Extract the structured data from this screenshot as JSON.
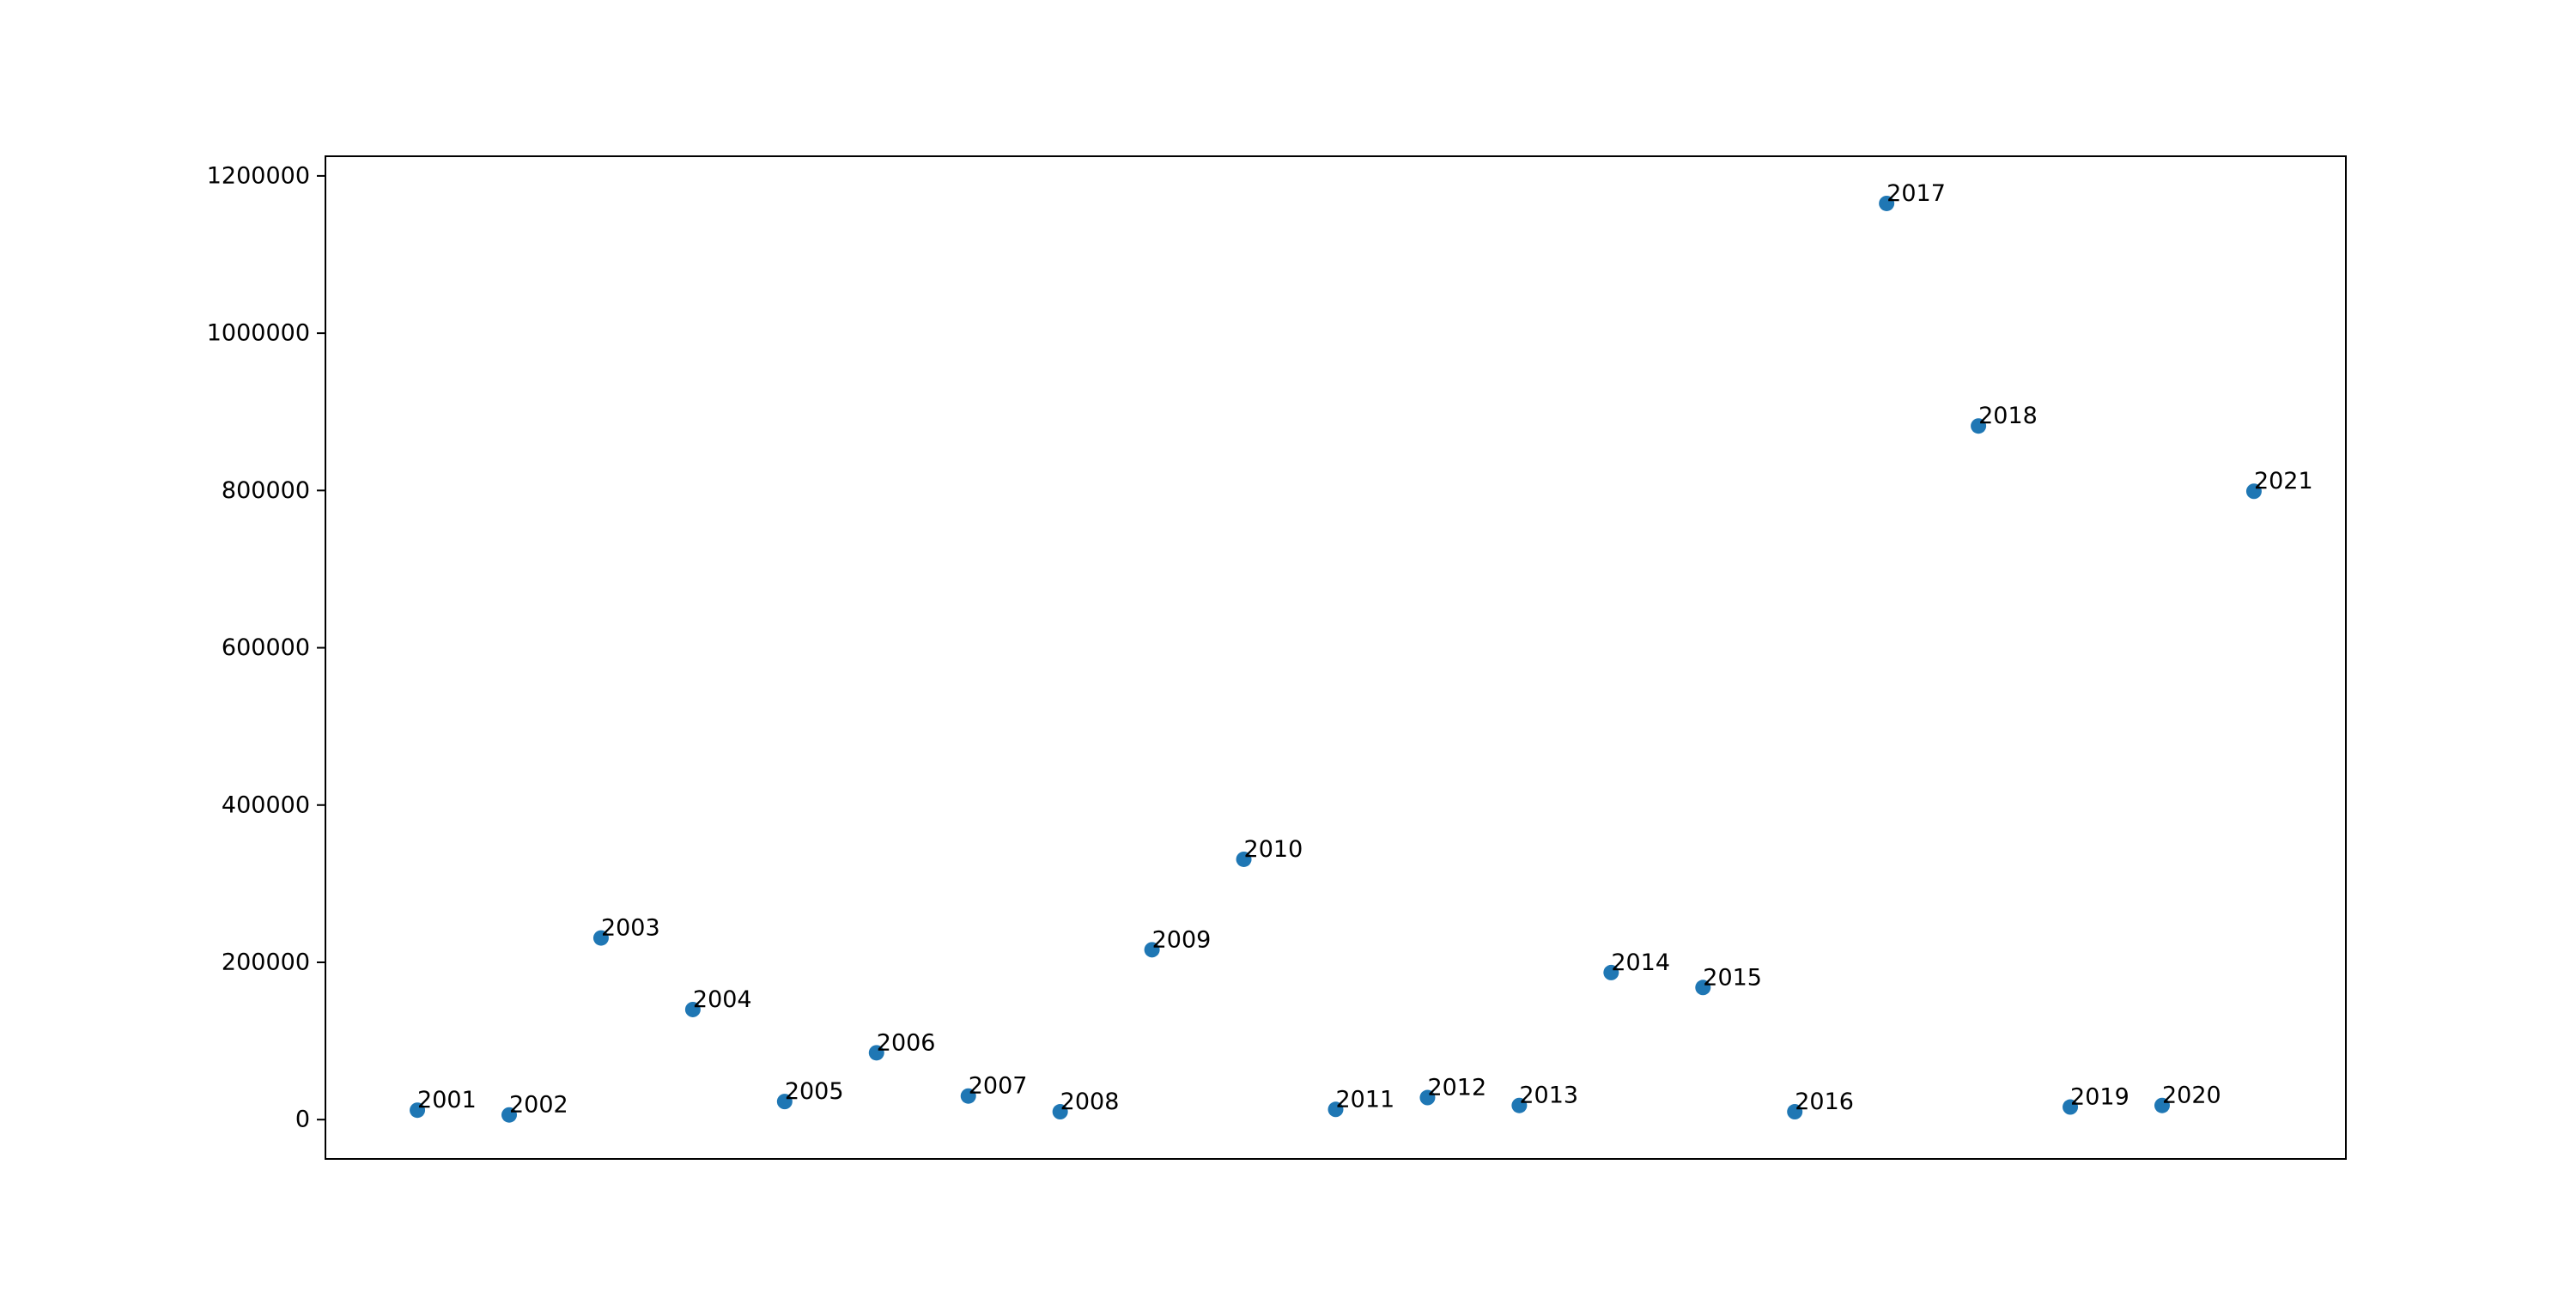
{
  "chart_data": {
    "type": "scatter",
    "title": "",
    "xlabel": "",
    "ylabel": "",
    "ylim": [
      -50000,
      1225000
    ],
    "y_ticks": [
      0,
      200000,
      400000,
      600000,
      800000,
      1000000,
      1200000
    ],
    "y_tick_labels": [
      "0",
      "200000",
      "400000",
      "600000",
      "800000",
      "1000000",
      "1200000"
    ],
    "x_ticks_visible": false,
    "grid": false,
    "legend": "none",
    "marker_color": "#1f77b4",
    "points": [
      {
        "label": "2001",
        "x": 2001,
        "y": 12000
      },
      {
        "label": "2002",
        "x": 2002,
        "y": 6000
      },
      {
        "label": "2003",
        "x": 2003,
        "y": 231000
      },
      {
        "label": "2004",
        "x": 2004,
        "y": 140000
      },
      {
        "label": "2005",
        "x": 2005,
        "y": 23000
      },
      {
        "label": "2006",
        "x": 2006,
        "y": 85000
      },
      {
        "label": "2007",
        "x": 2007,
        "y": 30000
      },
      {
        "label": "2008",
        "x": 2008,
        "y": 10000
      },
      {
        "label": "2009",
        "x": 2009,
        "y": 216000
      },
      {
        "label": "2010",
        "x": 2010,
        "y": 331000
      },
      {
        "label": "2011",
        "x": 2011,
        "y": 13000
      },
      {
        "label": "2012",
        "x": 2012,
        "y": 28000
      },
      {
        "label": "2013",
        "x": 2013,
        "y": 18000
      },
      {
        "label": "2014",
        "x": 2014,
        "y": 187000
      },
      {
        "label": "2015",
        "x": 2015,
        "y": 168000
      },
      {
        "label": "2016",
        "x": 2016,
        "y": 10000
      },
      {
        "label": "2017",
        "x": 2017,
        "y": 1165000
      },
      {
        "label": "2018",
        "x": 2018,
        "y": 882000
      },
      {
        "label": "2019",
        "x": 2019,
        "y": 16000
      },
      {
        "label": "2020",
        "x": 2020,
        "y": 18000
      },
      {
        "label": "2021",
        "x": 2021,
        "y": 799000
      }
    ]
  }
}
